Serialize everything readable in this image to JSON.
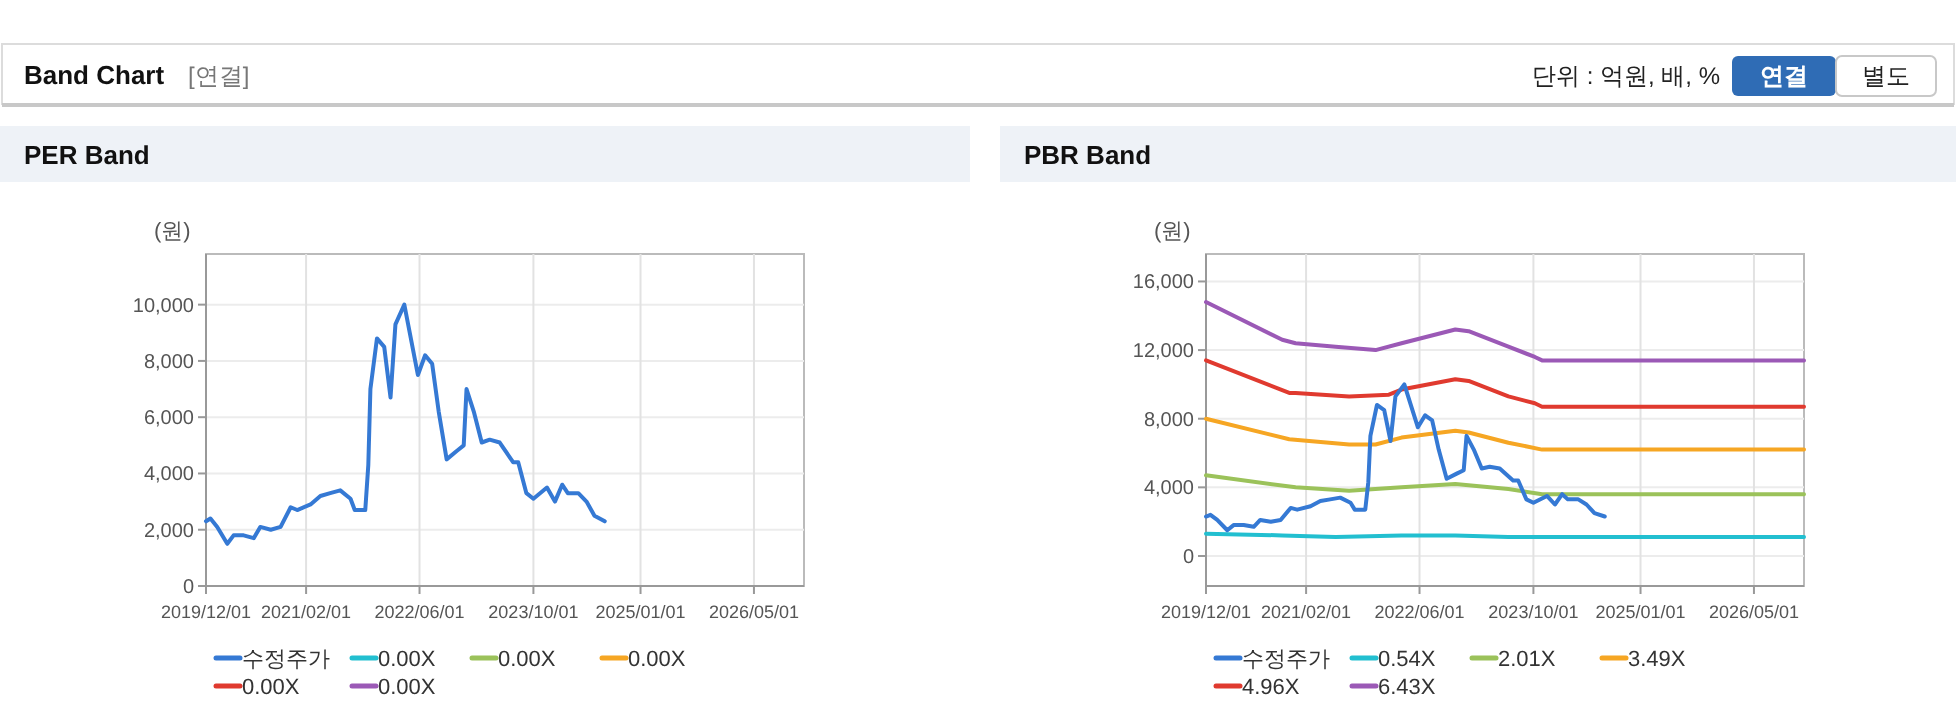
{
  "chart_data": [
    {
      "type": "other",
      "title": "Band Chart",
      "annotations": [
        "[연결]",
        "단위 : 억원, 배, %",
        "연결",
        "별도"
      ]
    },
    {
      "type": "line",
      "title": "PER Band",
      "ylabel": "(원)",
      "grid": true,
      "legend": "bottom",
      "xlim": [
        "2019-12-01",
        "2026-12-01"
      ],
      "xticks": [
        {
          "value": "2019-12-01",
          "label": "2019/12/01"
        },
        {
          "value": "2021-02-01",
          "label": "2021/02/01"
        },
        {
          "value": "2022-06-01",
          "label": "2022/06/01"
        },
        {
          "value": "2023-10-01",
          "label": "2023/10/01"
        },
        {
          "value": "2025-01-01",
          "label": "2025/01/01"
        },
        {
          "value": "2026-05-01",
          "label": "2026/05/01"
        }
      ],
      "ylim": [
        0,
        11800
      ],
      "yticks": [
        0,
        {
          "value": 2000,
          "label": "2,000"
        },
        {
          "value": 4000,
          "label": "4,000"
        },
        {
          "value": 6000,
          "label": "6,000"
        },
        {
          "value": 8000,
          "label": "8,000"
        },
        {
          "value": 10000,
          "label": "10,000"
        }
      ],
      "x": [
        "2019-12-01",
        "2019-12-20",
        "2020-01-18",
        "2020-03-01",
        "2020-03-28",
        "2020-05-10",
        "2020-06-22",
        "2020-07-20",
        "2020-09-03",
        "2020-10-15",
        "2020-11-27",
        "2020-12-25",
        "2021-02-20",
        "2021-04-03",
        "2021-05-15",
        "2021-06-27",
        "2021-08-10",
        "2021-08-28",
        "2021-10-12",
        "2021-10-25",
        "2021-11-03",
        "2021-12-01",
        "2022-01-01",
        "2022-01-28",
        "2022-02-18",
        "2022-03-28",
        "2022-05-25",
        "2022-06-25",
        "2022-07-25",
        "2022-08-22",
        "2022-09-25",
        "2022-11-07",
        "2022-12-07",
        "2022-12-19",
        "2023-01-19",
        "2023-02-22",
        "2023-03-28",
        "2023-05-10",
        "2023-07-06",
        "2023-07-28",
        "2023-09-01",
        "2023-10-01",
        "2023-11-28",
        "2024-01-01",
        "2024-02-01",
        "2024-02-25",
        "2024-04-10",
        "2024-05-15",
        "2024-06-18",
        "2024-08-01"
      ],
      "series": [
        {
          "name": "수정주가",
          "color": "#3579d4",
          "values": [
            2300,
            2400,
            2100,
            1500,
            1800,
            1800,
            1700,
            2100,
            2000,
            2100,
            2800,
            2700,
            2900,
            3200,
            3300,
            3400,
            3100,
            2700,
            2700,
            4300,
            7000,
            8800,
            8500,
            6700,
            9300,
            10000,
            7500,
            8200,
            7900,
            6200,
            4500,
            4800,
            5000,
            7000,
            6200,
            5100,
            5200,
            5100,
            4400,
            4400,
            3300,
            3100,
            3500,
            3000,
            3600,
            3300,
            3300,
            3000,
            2500,
            2300
          ]
        },
        {
          "name": "0.00X",
          "color": "#22bfd0",
          "values": [
            null,
            null,
            null,
            null,
            null,
            null,
            null,
            null,
            null,
            null,
            null,
            null,
            null,
            null,
            null,
            null,
            null,
            null,
            null,
            null,
            null,
            null,
            null,
            null,
            null,
            null,
            null,
            null,
            null,
            null,
            null,
            null,
            null,
            null,
            null,
            null,
            null,
            null,
            null,
            null,
            null,
            null,
            null,
            null,
            null,
            null,
            null,
            null,
            null,
            null
          ]
        },
        {
          "name": "0.00X",
          "color": "#9bc25a",
          "values": [
            null,
            null,
            null,
            null,
            null,
            null,
            null,
            null,
            null,
            null,
            null,
            null,
            null,
            null,
            null,
            null,
            null,
            null,
            null,
            null,
            null,
            null,
            null,
            null,
            null,
            null,
            null,
            null,
            null,
            null,
            null,
            null,
            null,
            null,
            null,
            null,
            null,
            null,
            null,
            null,
            null,
            null,
            null,
            null,
            null,
            null,
            null,
            null,
            null,
            null
          ]
        },
        {
          "name": "0.00X",
          "color": "#f6a623",
          "values": [
            null,
            null,
            null,
            null,
            null,
            null,
            null,
            null,
            null,
            null,
            null,
            null,
            null,
            null,
            null,
            null,
            null,
            null,
            null,
            null,
            null,
            null,
            null,
            null,
            null,
            null,
            null,
            null,
            null,
            null,
            null,
            null,
            null,
            null,
            null,
            null,
            null,
            null,
            null,
            null,
            null,
            null,
            null,
            null,
            null,
            null,
            null,
            null,
            null,
            null
          ]
        },
        {
          "name": "0.00X",
          "color": "#e03a2f",
          "values": [
            null,
            null,
            null,
            null,
            null,
            null,
            null,
            null,
            null,
            null,
            null,
            null,
            null,
            null,
            null,
            null,
            null,
            null,
            null,
            null,
            null,
            null,
            null,
            null,
            null,
            null,
            null,
            null,
            null,
            null,
            null,
            null,
            null,
            null,
            null,
            null,
            null,
            null,
            null,
            null,
            null,
            null,
            null,
            null,
            null,
            null,
            null,
            null,
            null,
            null
          ]
        },
        {
          "name": "0.00X",
          "color": "#9b59b6",
          "values": [
            null,
            null,
            null,
            null,
            null,
            null,
            null,
            null,
            null,
            null,
            null,
            null,
            null,
            null,
            null,
            null,
            null,
            null,
            null,
            null,
            null,
            null,
            null,
            null,
            null,
            null,
            null,
            null,
            null,
            null,
            null,
            null,
            null,
            null,
            null,
            null,
            null,
            null,
            null,
            null,
            null,
            null,
            null,
            null,
            null,
            null,
            null,
            null,
            null,
            null
          ]
        }
      ]
    },
    {
      "type": "line",
      "title": "PBR Band",
      "ylabel": "(원)",
      "grid": true,
      "legend": "bottom",
      "xlim": [
        "2019-12-01",
        "2026-12-01"
      ],
      "xticks": [
        {
          "value": "2019-12-01",
          "label": "2019/12/01"
        },
        {
          "value": "2021-02-01",
          "label": "2021/02/01"
        },
        {
          "value": "2022-06-01",
          "label": "2022/06/01"
        },
        {
          "value": "2023-10-01",
          "label": "2023/10/01"
        },
        {
          "value": "2025-01-01",
          "label": "2025/01/01"
        },
        {
          "value": "2026-05-01",
          "label": "2026/05/01"
        }
      ],
      "ylim": [
        -1750,
        17600
      ],
      "yticks": [
        0,
        {
          "value": 4000,
          "label": "4,000"
        },
        {
          "value": 8000,
          "label": "8,000"
        },
        {
          "value": 12000,
          "label": "12,000"
        },
        {
          "value": 16000,
          "label": "16,000"
        }
      ],
      "x": [
        "2019-12-01",
        "2019-12-20",
        "2020-01-18",
        "2020-03-01",
        "2020-03-28",
        "2020-05-10",
        "2020-06-22",
        "2020-07-20",
        "2020-09-03",
        "2020-10-15",
        "2020-11-27",
        "2020-12-25",
        "2021-02-20",
        "2021-04-03",
        "2021-05-15",
        "2021-06-27",
        "2021-08-10",
        "2021-08-28",
        "2021-10-12",
        "2021-10-25",
        "2021-11-03",
        "2021-12-01",
        "2022-01-01",
        "2022-01-28",
        "2022-02-18",
        "2022-03-28",
        "2022-05-25",
        "2022-06-25",
        "2022-07-25",
        "2022-08-22",
        "2022-09-25",
        "2022-11-07",
        "2022-12-07",
        "2022-12-19",
        "2023-01-19",
        "2023-02-22",
        "2023-03-28",
        "2023-05-10",
        "2023-07-06",
        "2023-07-28",
        "2023-09-01",
        "2023-10-01",
        "2023-11-28",
        "2024-01-01",
        "2024-02-01",
        "2024-02-25",
        "2024-04-10",
        "2024-05-15",
        "2024-06-18",
        "2024-08-01"
      ],
      "series": [
        {
          "name": "수정주가",
          "color": "#3579d4",
          "values": [
            2300,
            2400,
            2100,
            1500,
            1800,
            1800,
            1700,
            2100,
            2000,
            2100,
            2800,
            2700,
            2900,
            3200,
            3300,
            3400,
            3100,
            2700,
            2700,
            4300,
            7000,
            8800,
            8500,
            6700,
            9300,
            10000,
            7500,
            8200,
            7900,
            6200,
            4500,
            4800,
            5000,
            7000,
            6200,
            5100,
            5200,
            5100,
            4400,
            4400,
            3300,
            3100,
            3500,
            3000,
            3600,
            3300,
            3300,
            3000,
            2500,
            2300
          ]
        },
        {
          "name": "0.54X",
          "color": "#22bfd0",
          "x": [
            "2019-12-01",
            "2020-10-22",
            "2021-06-07",
            "2022-03-16",
            "2022-11-01",
            "2023-06-16",
            "2026-12-01"
          ],
          "values": [
            1300,
            1200,
            1100,
            1200,
            1200,
            1100,
            1100
          ]
        },
        {
          "name": "2.01X",
          "color": "#9bc25a",
          "x": [
            "2019-12-01",
            "2020-12-18",
            "2021-08-04",
            "2022-03-16",
            "2022-11-01",
            "2023-06-16",
            "2023-11-07",
            "2026-12-01"
          ],
          "values": [
            4700,
            4000,
            3800,
            4000,
            4200,
            3900,
            3600,
            3600
          ]
        },
        {
          "name": "3.49X",
          "color": "#f6a623",
          "x": [
            "2019-12-01",
            "2020-11-21",
            "2021-08-04",
            "2021-11-25",
            "2022-03-16",
            "2022-11-01",
            "2022-12-28",
            "2023-06-16",
            "2023-11-07",
            "2026-12-01"
          ],
          "values": [
            8000,
            6800,
            6500,
            6500,
            6900,
            7300,
            7200,
            6600,
            6200,
            6200
          ]
        },
        {
          "name": "4.96X",
          "color": "#e03a2f",
          "x": [
            "2019-12-01",
            "2020-11-21",
            "2020-12-18",
            "2021-08-04",
            "2022-01-21",
            "2022-03-16",
            "2022-11-01",
            "2022-12-28",
            "2023-06-16",
            "2023-10-07",
            "2023-11-07",
            "2026-12-01"
          ],
          "values": [
            11400,
            9500,
            9500,
            9300,
            9400,
            9700,
            10300,
            10200,
            9300,
            8900,
            8700,
            8700
          ]
        },
        {
          "name": "6.43X",
          "color": "#9b59b6",
          "x": [
            "2019-12-01",
            "2020-10-22",
            "2020-12-18",
            "2021-06-07",
            "2021-11-25",
            "2022-03-16",
            "2022-11-01",
            "2022-12-28",
            "2023-06-16",
            "2023-10-07",
            "2023-11-07",
            "2026-12-01"
          ],
          "values": [
            14800,
            12600,
            12400,
            12200,
            12000,
            12400,
            13200,
            13100,
            12200,
            11600,
            11400,
            11400
          ]
        }
      ]
    }
  ]
}
